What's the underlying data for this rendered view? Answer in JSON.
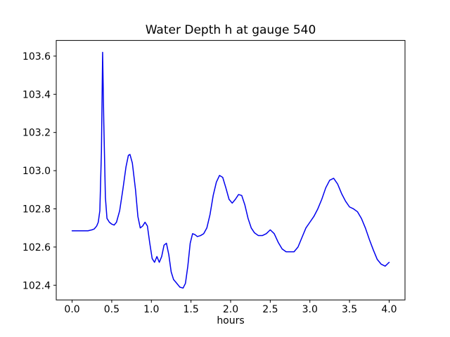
{
  "chart_data": {
    "type": "line",
    "title": "Water Depth h at gauge 540",
    "xlabel": "hours",
    "ylabel": "",
    "line_color": "#0000ee",
    "grid": false,
    "legend": null,
    "xlim": [
      -0.2,
      4.2
    ],
    "ylim": [
      102.323,
      103.682
    ],
    "xticks": [
      0.0,
      0.5,
      1.0,
      1.5,
      2.0,
      2.5,
      3.0,
      3.5,
      4.0
    ],
    "yticks": [
      102.4,
      102.6,
      102.8,
      103.0,
      103.2,
      103.4,
      103.6
    ],
    "series": [
      {
        "name": "water-depth-h",
        "color": "#0000ee",
        "x": [
          0.0,
          0.05,
          0.1,
          0.15,
          0.2,
          0.25,
          0.28,
          0.31,
          0.33,
          0.35,
          0.37,
          0.385,
          0.4,
          0.42,
          0.44,
          0.47,
          0.5,
          0.53,
          0.56,
          0.6,
          0.64,
          0.68,
          0.71,
          0.73,
          0.76,
          0.8,
          0.83,
          0.86,
          0.89,
          0.92,
          0.95,
          0.98,
          1.01,
          1.04,
          1.07,
          1.1,
          1.13,
          1.16,
          1.19,
          1.22,
          1.25,
          1.28,
          1.32,
          1.36,
          1.4,
          1.43,
          1.46,
          1.49,
          1.52,
          1.55,
          1.58,
          1.62,
          1.66,
          1.7,
          1.74,
          1.78,
          1.82,
          1.86,
          1.9,
          1.94,
          1.98,
          2.02,
          2.06,
          2.1,
          2.14,
          2.18,
          2.22,
          2.26,
          2.3,
          2.35,
          2.4,
          2.45,
          2.5,
          2.55,
          2.6,
          2.65,
          2.7,
          2.75,
          2.8,
          2.85,
          2.9,
          2.95,
          3.0,
          3.05,
          3.1,
          3.15,
          3.2,
          3.25,
          3.3,
          3.35,
          3.4,
          3.45,
          3.5,
          3.55,
          3.6,
          3.65,
          3.7,
          3.75,
          3.8,
          3.85,
          3.9,
          3.95,
          4.0
        ],
        "y": [
          102.685,
          102.685,
          102.685,
          102.685,
          102.685,
          102.69,
          102.695,
          102.71,
          102.73,
          102.79,
          103.1,
          103.62,
          103.25,
          102.86,
          102.75,
          102.73,
          102.72,
          102.715,
          102.73,
          102.79,
          102.9,
          103.02,
          103.08,
          103.085,
          103.04,
          102.9,
          102.76,
          102.7,
          102.71,
          102.73,
          102.71,
          102.62,
          102.54,
          102.52,
          102.55,
          102.52,
          102.55,
          102.61,
          102.62,
          102.56,
          102.47,
          102.43,
          102.41,
          102.39,
          102.385,
          102.41,
          102.5,
          102.62,
          102.67,
          102.665,
          102.655,
          102.66,
          102.67,
          102.7,
          102.77,
          102.87,
          102.94,
          102.975,
          102.965,
          102.91,
          102.85,
          102.83,
          102.85,
          102.875,
          102.87,
          102.82,
          102.75,
          102.7,
          102.675,
          102.66,
          102.66,
          102.67,
          102.69,
          102.67,
          102.625,
          102.59,
          102.575,
          102.575,
          102.575,
          102.6,
          102.65,
          102.7,
          102.73,
          102.76,
          102.8,
          102.85,
          102.91,
          102.95,
          102.96,
          102.93,
          102.88,
          102.84,
          102.81,
          102.8,
          102.785,
          102.75,
          102.7,
          102.64,
          102.585,
          102.535,
          102.51,
          102.5,
          102.52
        ]
      }
    ]
  }
}
